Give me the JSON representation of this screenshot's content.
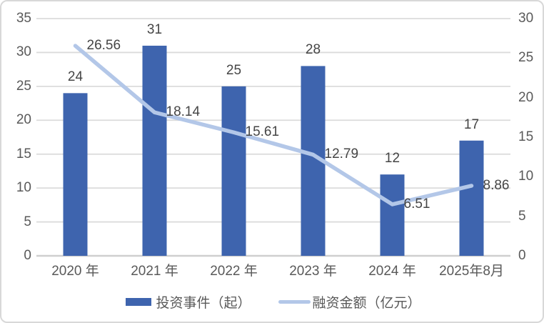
{
  "chart_data": {
    "type": "bar",
    "subtype": "bar+line-dual-axis",
    "categories": [
      "2020 年",
      "2021 年",
      "2022 年",
      "2023 年",
      "2024 年",
      "2025年8月"
    ],
    "series": [
      {
        "name": "投资事件（起）",
        "type": "bar",
        "axis": "left",
        "values": [
          24,
          31,
          25,
          28,
          12,
          17
        ],
        "color": "#3e64ae"
      },
      {
        "name": "融资金额（亿元）",
        "type": "line",
        "axis": "right",
        "values": [
          26.56,
          18.14,
          15.61,
          12.79,
          6.51,
          8.86
        ],
        "color": "#b3c7e8"
      }
    ],
    "left_axis": {
      "min": 0,
      "max": 35,
      "step": 5,
      "ticks": [
        35,
        30,
        25,
        20,
        15,
        10,
        5,
        0
      ]
    },
    "right_axis": {
      "min": 0,
      "max": 30,
      "step": 5,
      "ticks": [
        30,
        25,
        20,
        15,
        10,
        5,
        0
      ]
    },
    "grid": true,
    "title": "",
    "legend_position": "bottom"
  },
  "legend": {
    "bar_label": "投资事件（起）",
    "line_label": "融资金额（亿元）"
  },
  "colors": {
    "bar": "#3e64ae",
    "line": "#b3c7e8",
    "grid": "#dbdbdb",
    "baseline": "#cfcfcf",
    "axis_text": "#595959",
    "value_text": "#454545",
    "frame_border": "#d8d8d8",
    "background": "#ffffff"
  }
}
